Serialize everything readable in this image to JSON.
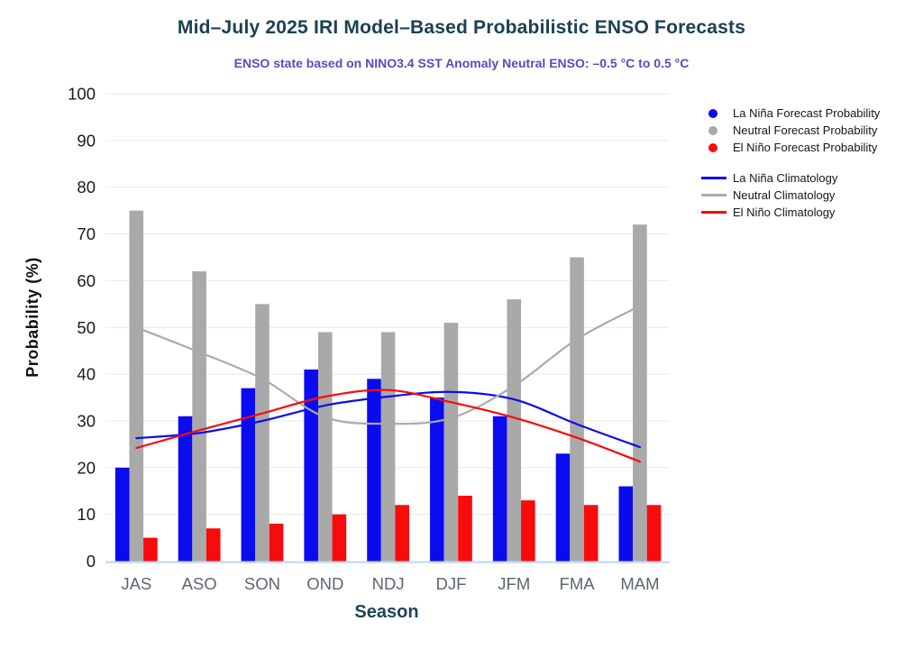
{
  "chart_data": {
    "type": "bar",
    "title": "Mid–July 2025 IRI Model–Based Probabilistic ENSO Forecasts",
    "subtitle": "ENSO state based on NINO3.4 SST Anomaly Neutral ENSO: –0.5 °C to 0.5 °C",
    "xlabel": "Season",
    "ylabel": "Probability (%)",
    "categories": [
      "JAS",
      "ASO",
      "SON",
      "OND",
      "NDJ",
      "DJF",
      "JFM",
      "FMA",
      "MAM"
    ],
    "series": [
      {
        "name": "La Niña Forecast Probability",
        "type": "bar",
        "color": "#0b0bf0",
        "values": [
          20,
          31,
          37,
          41,
          39,
          35,
          31,
          23,
          16
        ]
      },
      {
        "name": "Neutral Forecast Probability",
        "type": "bar",
        "color": "#a9a9a9",
        "values": [
          75,
          62,
          55,
          49,
          49,
          51,
          56,
          65,
          72
        ]
      },
      {
        "name": "El Niño Forecast Probability",
        "type": "bar",
        "color": "#f80b0b",
        "values": [
          5,
          7,
          8,
          10,
          12,
          14,
          13,
          12,
          12
        ]
      },
      {
        "name": "La Niña Climatology",
        "type": "line",
        "color": "#0b0bf0",
        "values": [
          26.3,
          27.4,
          30.0,
          33.3,
          35.2,
          36.2,
          34.6,
          29.3,
          24.4
        ]
      },
      {
        "name": "Neutral Climatology",
        "type": "line",
        "color": "#ababab",
        "values": [
          50.0,
          44.7,
          39.0,
          30.8,
          29.4,
          30.6,
          37.5,
          47.5,
          54.6
        ]
      },
      {
        "name": "El Niño Climatology",
        "type": "line",
        "color": "#f80b0b",
        "values": [
          24.2,
          28.0,
          31.6,
          35.2,
          36.6,
          34.0,
          30.7,
          26.4,
          21.3
        ]
      }
    ],
    "ylim": [
      0,
      100
    ],
    "yticks": [
      0,
      10,
      20,
      30,
      40,
      50,
      60,
      70,
      80,
      90,
      100
    ],
    "grid": true,
    "legend_position": "top-right",
    "axis_colors": {
      "ytick_label": "#1a1a1a",
      "xtick_label": "#5d676e",
      "gridline": "#e9e9e9",
      "baseline": "#c7dbf2"
    }
  }
}
